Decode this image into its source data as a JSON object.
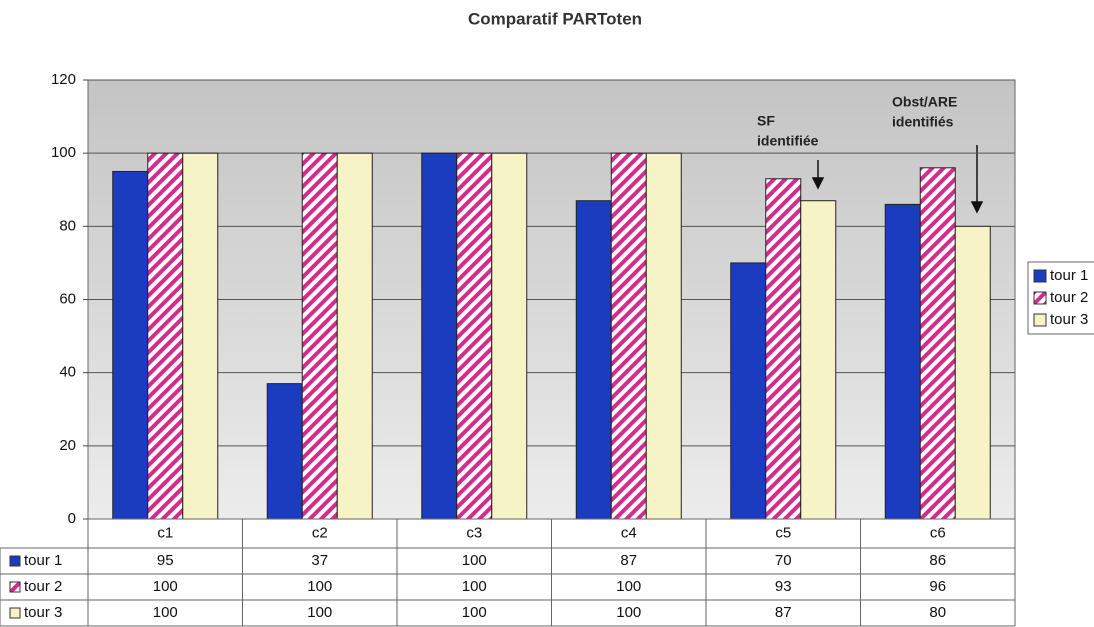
{
  "chart_data": {
    "type": "bar",
    "title": "Comparatif PARToten",
    "categories": [
      "c1",
      "c2",
      "c3",
      "c4",
      "c5",
      "c6"
    ],
    "series": [
      {
        "name": "tour 1",
        "color": "#1c3cc0",
        "values": [
          95,
          37,
          100,
          87,
          70,
          86
        ]
      },
      {
        "name": "tour 2",
        "color": "#d42c8c",
        "hatch": true,
        "values": [
          100,
          100,
          100,
          100,
          93,
          96
        ]
      },
      {
        "name": "tour 3",
        "color": "#f6f3c6",
        "values": [
          100,
          100,
          100,
          100,
          87,
          80
        ]
      }
    ],
    "ylim": [
      0,
      120
    ],
    "yticks": [
      0,
      20,
      40,
      60,
      80,
      100,
      120
    ],
    "grid": true,
    "legend": "right",
    "data_table": true,
    "annotations": [
      {
        "lines": [
          "SF",
          "identifiée"
        ]
      },
      {
        "lines": [
          "Obst/ARE",
          "identifiés"
        ]
      }
    ]
  }
}
